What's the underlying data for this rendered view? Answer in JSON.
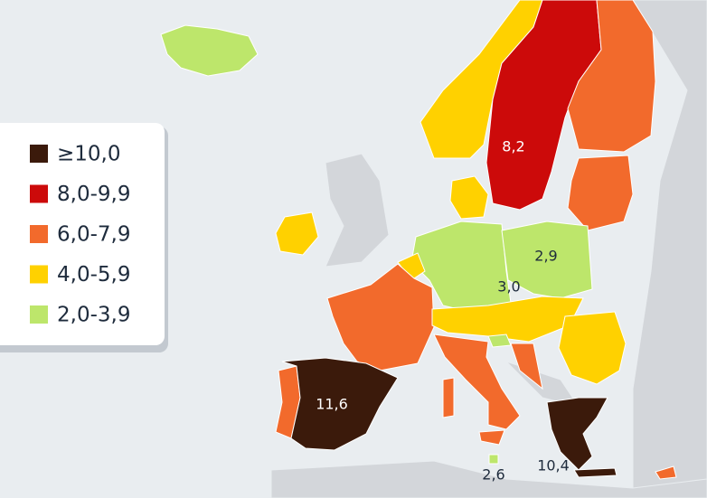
{
  "legend": {
    "items": [
      {
        "label": "≥10,0",
        "color": "#3b1a0b"
      },
      {
        "label": "8,0-9,9",
        "color": "#cc0a0a"
      },
      {
        "label": "6,0-7,9",
        "color": "#f26a2c"
      },
      {
        "label": "4,0-5,9",
        "color": "#ffd100"
      },
      {
        "label": "2,0-3,9",
        "color": "#bde66b"
      }
    ]
  },
  "labels": [
    "8,2",
    "2,9",
    "3,0",
    "11,6",
    "2,6",
    "10,4"
  ]
}
